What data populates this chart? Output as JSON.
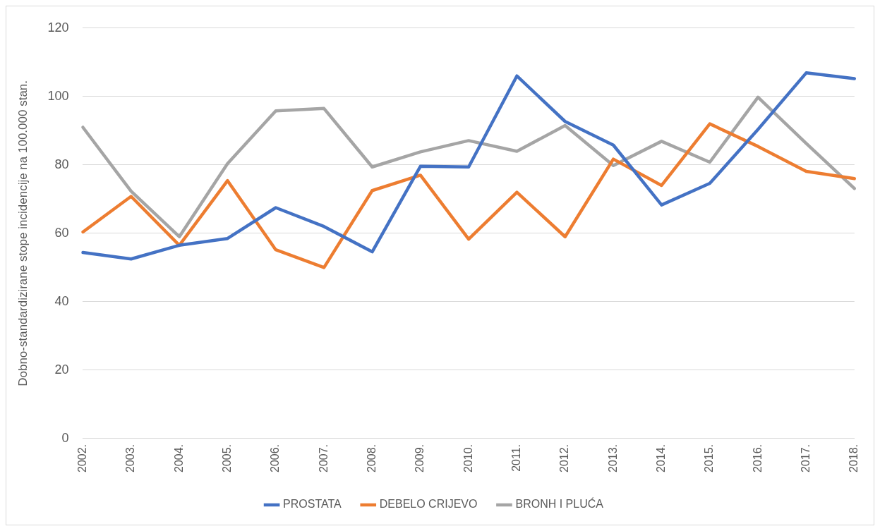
{
  "chart_data": {
    "type": "line",
    "ylabel": "Dobno-standardizirane stope incidencije na 100.000 stan.",
    "categories": [
      "2002.",
      "2003.",
      "2004.",
      "2005.",
      "2006.",
      "2007.",
      "2008.",
      "2009.",
      "2010.",
      "2011.",
      "2012.",
      "2013.",
      "2014.",
      "2015.",
      "2016.",
      "2017.",
      "2018."
    ],
    "series": [
      {
        "name": "PROSTATA",
        "color": "#4472c4",
        "values": [
          54.4,
          52.5,
          56.5,
          58.5,
          67.5,
          62,
          54.6,
          79.6,
          79.4,
          106,
          92.7,
          85.8,
          68.3,
          74.6,
          90.4,
          106.9,
          105.2
        ]
      },
      {
        "name": "DEBELO CRIJEVO",
        "color": "#ed7d31",
        "values": [
          60.4,
          70.8,
          56.5,
          75.4,
          55.2,
          50,
          72.5,
          77,
          58.3,
          72,
          59,
          81.7,
          74,
          92,
          85.4,
          78.1,
          76
        ]
      },
      {
        "name": "BRONH I PLUĆA",
        "color": "#a5a5a5",
        "values": [
          91,
          72.3,
          59,
          80.4,
          95.8,
          96.5,
          79.4,
          83.8,
          87.1,
          84,
          91.5,
          79.8,
          86.9,
          80.8,
          99.8,
          86.3,
          73.1
        ]
      }
    ],
    "ylim": [
      0,
      120
    ],
    "yticks": [
      0,
      20,
      40,
      60,
      80,
      100,
      120
    ],
    "grid": "y",
    "legend": "bottom",
    "marker": "none",
    "line_style": "solid"
  }
}
